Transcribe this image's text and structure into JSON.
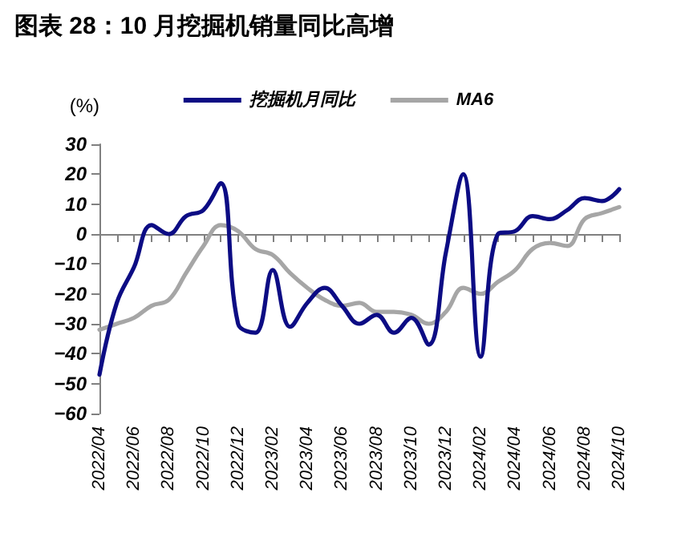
{
  "chart_data": {
    "type": "line",
    "title": "图表 28：10 月挖掘机销量同比高增",
    "ylabel": "(%)",
    "categories": [
      "2022/04",
      null,
      "2022/06",
      null,
      "2022/08",
      null,
      "2022/10",
      null,
      "2022/12",
      null,
      "2023/02",
      null,
      "2023/04",
      null,
      "2023/06",
      null,
      "2023/08",
      null,
      "2023/10",
      null,
      "2023/12",
      null,
      "2024/02",
      null,
      "2024/04",
      null,
      "2024/06",
      null,
      "2024/08",
      null,
      "2024/10"
    ],
    "series": [
      {
        "name": "挖掘机月同比",
        "color": "#0c0c84",
        "values": [
          -47,
          -23,
          -11,
          3,
          0,
          6,
          8,
          17,
          -30,
          -33,
          -12,
          -31,
          -23,
          -18,
          -24,
          -30,
          -27,
          -33,
          -28,
          -37,
          -6,
          20,
          -41,
          0,
          1,
          6,
          5,
          8,
          12,
          11,
          15
        ]
      },
      {
        "name": "MA6",
        "color": "#a6a6a6",
        "values": [
          -32,
          -30,
          -28,
          -24,
          -22,
          -13,
          -4,
          3,
          1,
          -5,
          -7,
          -13,
          -18,
          -22,
          -24,
          -23,
          -26,
          -26,
          -27,
          -30,
          -26,
          -18,
          -20,
          -16,
          -12,
          -5,
          -3,
          -4,
          5,
          7,
          9
        ]
      }
    ],
    "ylim": [
      -60,
      30
    ],
    "yticks": [
      -60,
      -50,
      -40,
      -30,
      -20,
      -10,
      0,
      10,
      20,
      30
    ],
    "legend": "top",
    "marker": "none",
    "line_style": "solid"
  }
}
